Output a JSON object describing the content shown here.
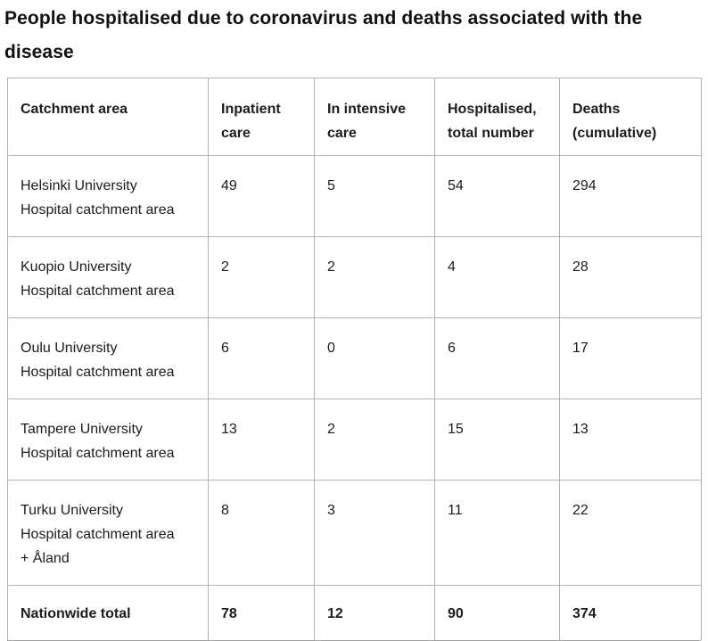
{
  "title": "People hospitalised due to coronavirus and deaths associated with the\ndisease",
  "table": {
    "headers": [
      "Catchment area",
      "Inpatient\ncare",
      "In intensive\ncare",
      "Hospitalised,\ntotal number",
      "Deaths\n(cumulative)"
    ],
    "rows": [
      {
        "cells": [
          "Helsinki University\nHospital catchment area",
          "49",
          "5",
          "54",
          "294"
        ]
      },
      {
        "cells": [
          "Kuopio University\nHospital catchment area",
          "2",
          "2",
          "4",
          "28"
        ]
      },
      {
        "cells": [
          "Oulu University\nHospital catchment area",
          "6",
          "0",
          "6",
          "17"
        ]
      },
      {
        "cells": [
          "Tampere University\nHospital catchment area",
          "13",
          "2",
          "15",
          "13"
        ]
      },
      {
        "cells": [
          "Turku University\nHospital catchment area\n+ Åland",
          "8",
          "3",
          "11",
          "22"
        ]
      }
    ],
    "total": {
      "cells": [
        "Nationwide total",
        "78",
        "12",
        "90",
        "374"
      ]
    }
  },
  "colors": {
    "text": "#1c1c1c",
    "title_text": "#111111",
    "cell_border": "#b3b3b3",
    "table_bottom_border": "#a6a6a6",
    "background": "#ffffff"
  }
}
